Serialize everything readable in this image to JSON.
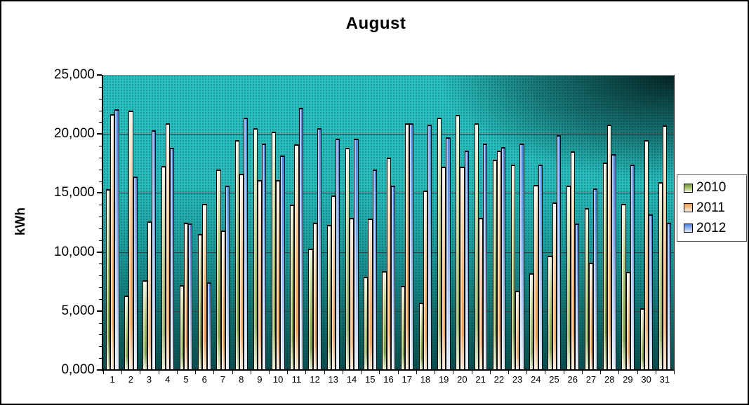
{
  "title": "August",
  "y_axis": {
    "label": "kWh",
    "tick_labels": [
      "25,000",
      "20,000",
      "15,000",
      "10,000",
      "5,000",
      "0,000"
    ]
  },
  "colors": {
    "series_2010": "#8FAE4E",
    "series_2011": "#F2A95C",
    "series_2012": "#4B82E0",
    "plot_background_teal": "#29BCBC",
    "plot_background_dark": "#0A4E4E"
  },
  "chart_data": {
    "type": "bar",
    "title": "August",
    "xlabel": "",
    "ylabel": "kWh",
    "ylim": [
      0,
      25000
    ],
    "ytick_interval": 5000,
    "ytick_minor_interval": 1000,
    "grid": true,
    "legend_position": "right",
    "categories": [
      "1",
      "2",
      "3",
      "4",
      "5",
      "6",
      "7",
      "8",
      "9",
      "10",
      "11",
      "12",
      "13",
      "14",
      "15",
      "16",
      "17",
      "18",
      "19",
      "20",
      "21",
      "22",
      "23",
      "24",
      "25",
      "26",
      "27",
      "28",
      "29",
      "30",
      "31"
    ],
    "series": [
      {
        "name": "2010",
        "values": [
          15300,
          6300,
          7600,
          17300,
          7200,
          11500,
          17000,
          19500,
          20500,
          20200,
          14000,
          10300,
          12300,
          18800,
          7900,
          8400,
          7100,
          5700,
          21400,
          21600,
          20900,
          17800,
          17400,
          8200,
          9700,
          15600,
          13700,
          17600,
          14100,
          5200,
          15900
        ]
      },
      {
        "name": "2011",
        "values": [
          21700,
          22000,
          12600,
          20900,
          12500,
          14100,
          11800,
          16600,
          16100,
          16100,
          19100,
          12500,
          14800,
          12900,
          12800,
          18000,
          20900,
          15200,
          17200,
          17200,
          12900,
          18600,
          6700,
          15700,
          14200,
          18500,
          9100,
          20800,
          8300,
          19500,
          20700
        ]
      },
      {
        "name": "2012",
        "values": [
          22100,
          16400,
          20300,
          18800,
          12400,
          7400,
          15600,
          21400,
          19200,
          18200,
          22200,
          20500,
          19600,
          19600,
          17000,
          15600,
          20900,
          20800,
          19700,
          18600,
          19200,
          18900,
          19200,
          17400,
          19900,
          12400,
          15400,
          18300,
          17400,
          13200,
          12500
        ]
      }
    ]
  }
}
